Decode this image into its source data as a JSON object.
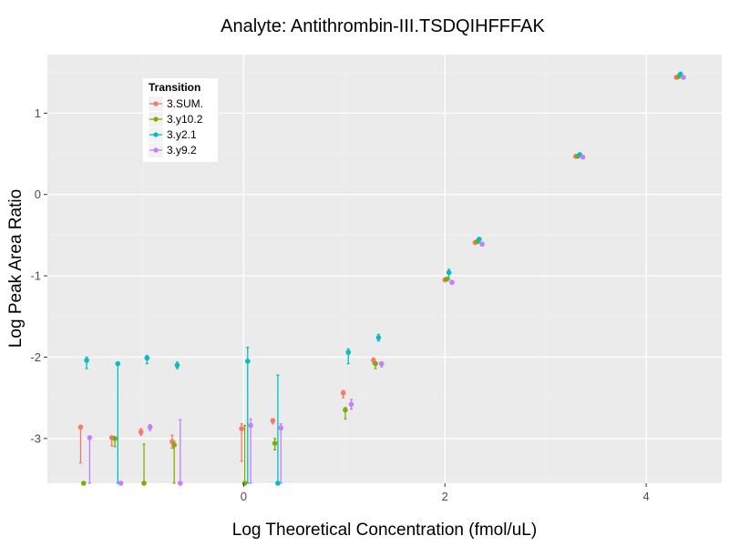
{
  "chart_data": {
    "type": "scatter",
    "title": "Analyte: Antithrombin-III.TSDQIHFFFAK",
    "xlabel": "Log Theoretical Concentration (fmol/uL)",
    "ylabel": "Log Peak Area Ratio",
    "xlim": [
      -1.95,
      4.75
    ],
    "ylim": [
      -3.55,
      1.72
    ],
    "x_ticks": [
      0,
      2,
      4
    ],
    "y_ticks": [
      -3,
      -2,
      -1,
      0,
      1
    ],
    "x_tick_labels": [
      "0",
      "2",
      "4"
    ],
    "y_tick_labels": [
      "-3",
      "-2",
      "-1",
      "0",
      "1"
    ],
    "grid": true,
    "legend": {
      "title": "Transition",
      "position": "top-left"
    },
    "series": [
      {
        "name": "3.SUM.",
        "color": "#F8766D",
        "x": [
          -1.62,
          -1.31,
          -1.02,
          -0.71,
          -0.02,
          0.29,
          0.99,
          1.29,
          2.0,
          2.3,
          3.3,
          4.3
        ],
        "y": [
          -2.86,
          -2.99,
          -2.92,
          -3.04,
          -2.88,
          -2.78,
          -2.44,
          -2.04,
          -1.05,
          -0.59,
          0.47,
          1.44
        ],
        "err_low": [
          -3.3,
          -3.09,
          -2.96,
          -3.12,
          -3.28,
          -2.82,
          -2.5,
          -2.08,
          -1.07,
          -0.61,
          0.46,
          1.43
        ],
        "err_high": [
          -2.86,
          -2.99,
          -2.88,
          -2.96,
          -2.82,
          -2.78,
          -2.41,
          -2.01,
          -1.03,
          -0.58,
          0.48,
          1.45
        ]
      },
      {
        "name": "3.y10.2",
        "color": "#7CAE00",
        "x": [
          -1.59,
          -1.28,
          -0.99,
          -0.69,
          0.01,
          0.31,
          1.01,
          1.31,
          2.02,
          2.32,
          3.32,
          4.32
        ],
        "y": [
          -3.55,
          -3.0,
          -3.55,
          -3.08,
          -3.55,
          -3.06,
          -2.65,
          -2.08,
          -1.04,
          -0.58,
          0.47,
          1.45
        ],
        "err_low": [
          -3.55,
          -3.1,
          -3.55,
          -3.55,
          -3.55,
          -3.14,
          -2.76,
          -2.14,
          -1.06,
          -0.6,
          0.46,
          1.44
        ],
        "err_high": [
          -3.55,
          -3.0,
          -3.07,
          -3.04,
          -2.84,
          -3.0,
          -2.62,
          -2.06,
          -1.02,
          -0.57,
          0.48,
          1.46
        ]
      },
      {
        "name": "3.y2.1",
        "color": "#00BFC4",
        "x": [
          -1.56,
          -1.25,
          -0.96,
          -0.66,
          0.04,
          0.34,
          1.04,
          1.34,
          2.04,
          2.34,
          3.34,
          4.34
        ],
        "y": [
          -2.04,
          -2.08,
          -2.01,
          -2.1,
          -2.05,
          -3.55,
          -1.94,
          -1.76,
          -0.96,
          -0.55,
          0.49,
          1.48
        ],
        "err_low": [
          -2.14,
          -3.55,
          -2.08,
          -2.14,
          -3.55,
          -3.55,
          -2.08,
          -1.8,
          -1.04,
          -0.59,
          0.48,
          1.46
        ],
        "err_high": [
          -2.0,
          -2.08,
          -1.98,
          -2.06,
          -1.88,
          -2.22,
          -1.9,
          -1.72,
          -0.92,
          -0.53,
          0.5,
          1.5
        ]
      },
      {
        "name": "3.y9.2",
        "color": "#C77CFF",
        "x": [
          -1.53,
          -1.22,
          -0.93,
          -0.63,
          0.07,
          0.37,
          1.07,
          1.37,
          2.07,
          2.37,
          3.37,
          4.37
        ],
        "y": [
          -2.99,
          -3.55,
          -2.86,
          -3.55,
          -2.84,
          -2.87,
          -2.58,
          -2.08,
          -1.08,
          -0.61,
          0.46,
          1.44
        ],
        "err_low": [
          -3.55,
          -3.55,
          -2.9,
          -3.55,
          -3.55,
          -3.55,
          -2.64,
          -2.12,
          -1.1,
          -0.63,
          0.45,
          1.43
        ],
        "err_high": [
          -2.97,
          -3.55,
          -2.83,
          -2.77,
          -2.76,
          -2.82,
          -2.52,
          -2.06,
          -1.06,
          -0.6,
          0.47,
          1.45
        ]
      }
    ]
  }
}
